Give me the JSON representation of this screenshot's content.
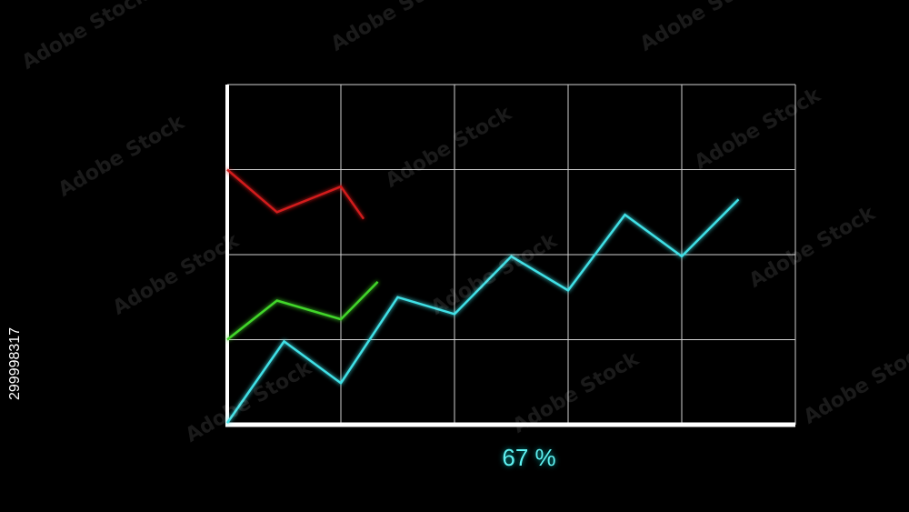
{
  "progress_label": "67 %",
  "side_id_text": "299998317",
  "watermark_text": "Adobe Stock",
  "colors": {
    "background": "#000000",
    "grid": "#d0d0d0",
    "axis": "#ffffff",
    "series_cyan": "#3fe0e6",
    "series_green": "#42d62a",
    "series_red": "#d21a1a",
    "label": "#5ff2f2"
  },
  "chart_data": {
    "type": "line",
    "title": "",
    "xlabel": "",
    "ylabel": "",
    "grid": true,
    "xlim": [
      0,
      20
    ],
    "ylim": [
      0,
      4
    ],
    "series": [
      {
        "color": "#3fe0e6",
        "x": [
          0,
          2,
          4,
          6,
          8,
          10,
          12,
          14,
          16,
          18
        ],
        "values": [
          0.02,
          0.98,
          0.49,
          1.5,
          1.3,
          1.98,
          1.58,
          2.47,
          1.98,
          2.65
        ]
      },
      {
        "color": "#42d62a",
        "x": [
          0,
          1.75,
          4,
          5.3
        ],
        "values": [
          1.0,
          1.46,
          1.24,
          1.68
        ]
      },
      {
        "color": "#d21a1a",
        "x": [
          0,
          1.75,
          4,
          4.8
        ],
        "values": [
          3.0,
          2.5,
          2.8,
          2.42
        ]
      }
    ]
  }
}
